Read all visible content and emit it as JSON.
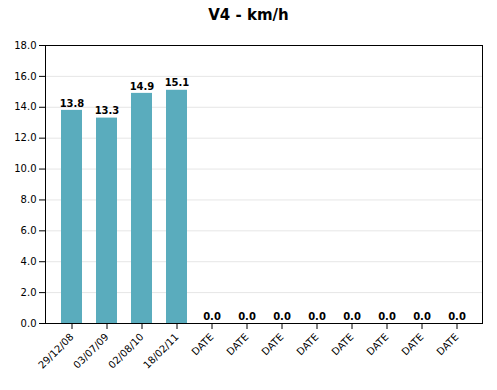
{
  "chart_data": {
    "type": "bar",
    "title": "V4 - km/h",
    "categories": [
      "29/12/08",
      "03/07/09",
      "02/08/10",
      "18/02/11",
      "DATE",
      "DATE",
      "DATE",
      "DATE",
      "DATE",
      "DATE",
      "DATE",
      "DATE"
    ],
    "values": [
      13.8,
      13.3,
      14.9,
      15.1,
      0.0,
      0.0,
      0.0,
      0.0,
      0.0,
      0.0,
      0.0,
      0.0
    ],
    "value_labels": [
      "13.8",
      "13.3",
      "14.9",
      "15.1",
      "0.0",
      "0.0",
      "0.0",
      "0.0",
      "0.0",
      "0.0",
      "0.0",
      "0.0"
    ],
    "color": "#5aacbd",
    "ylim": [
      0.0,
      18.0
    ],
    "yticks": [
      {
        "value": 0.0,
        "label": "0.0"
      },
      {
        "value": 2.0,
        "label": "2.0"
      },
      {
        "value": 4.0,
        "label": "4.0"
      },
      {
        "value": 6.0,
        "label": "6.0"
      },
      {
        "value": 8.0,
        "label": "8.0"
      },
      {
        "value": 10.0,
        "label": "10.0"
      },
      {
        "value": 12.0,
        "label": "12.0"
      },
      {
        "value": 14.0,
        "label": "14.0"
      },
      {
        "value": 16.0,
        "label": "16.0"
      },
      {
        "value": 18.0,
        "label": "18.0"
      }
    ],
    "grid": true,
    "data_labels": true
  }
}
